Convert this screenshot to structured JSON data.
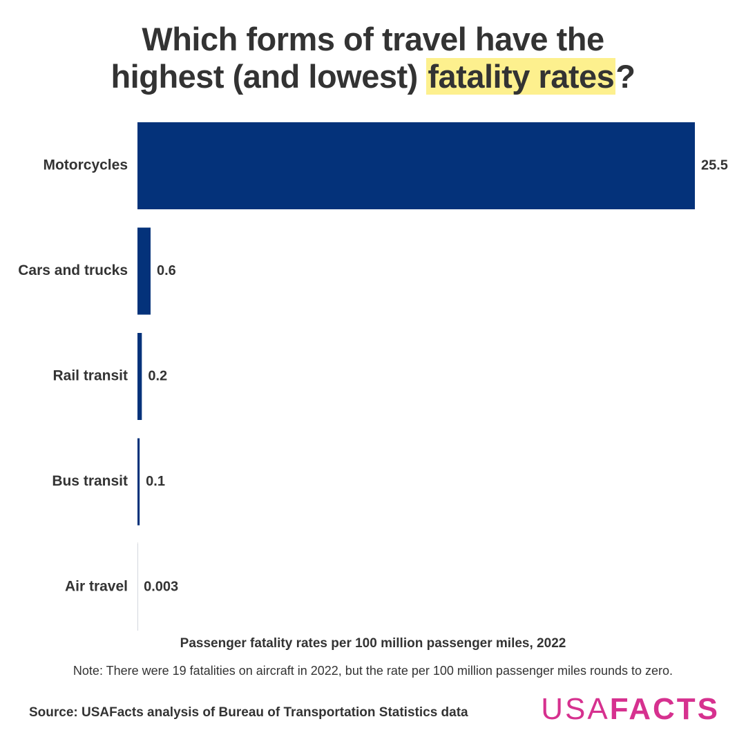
{
  "title": {
    "line1": "Which forms of travel have the",
    "line2_before": "highest (and lowest) ",
    "line2_highlight": "fatality rates",
    "line2_after": "?"
  },
  "chart_data": {
    "type": "bar",
    "orientation": "horizontal",
    "categories": [
      "Motorcycles",
      "Cars and trucks",
      "Rail transit",
      "Bus transit",
      "Air travel"
    ],
    "values": [
      25.5,
      0.6,
      0.2,
      0.1,
      0.003
    ],
    "value_labels": [
      "25.5",
      "0.6",
      "0.2",
      "0.1",
      "0.003"
    ],
    "xlim": [
      0,
      25.5
    ],
    "grid": false,
    "bar_color": "#04327a",
    "xlabel": "Passenger fatality rates per 100 million passenger miles, 2022"
  },
  "note": "Note: There were 19 fatalities on aircraft in 2022, but the rate per 100 million passenger miles rounds to zero.",
  "source": "Source: USAFacts analysis of Bureau of Transportation Statistics data",
  "logo": {
    "part1": "USA",
    "part2": "FACTS",
    "color": "#d6318f"
  },
  "colors": {
    "highlight": "#fdf08e",
    "text": "#333333"
  }
}
